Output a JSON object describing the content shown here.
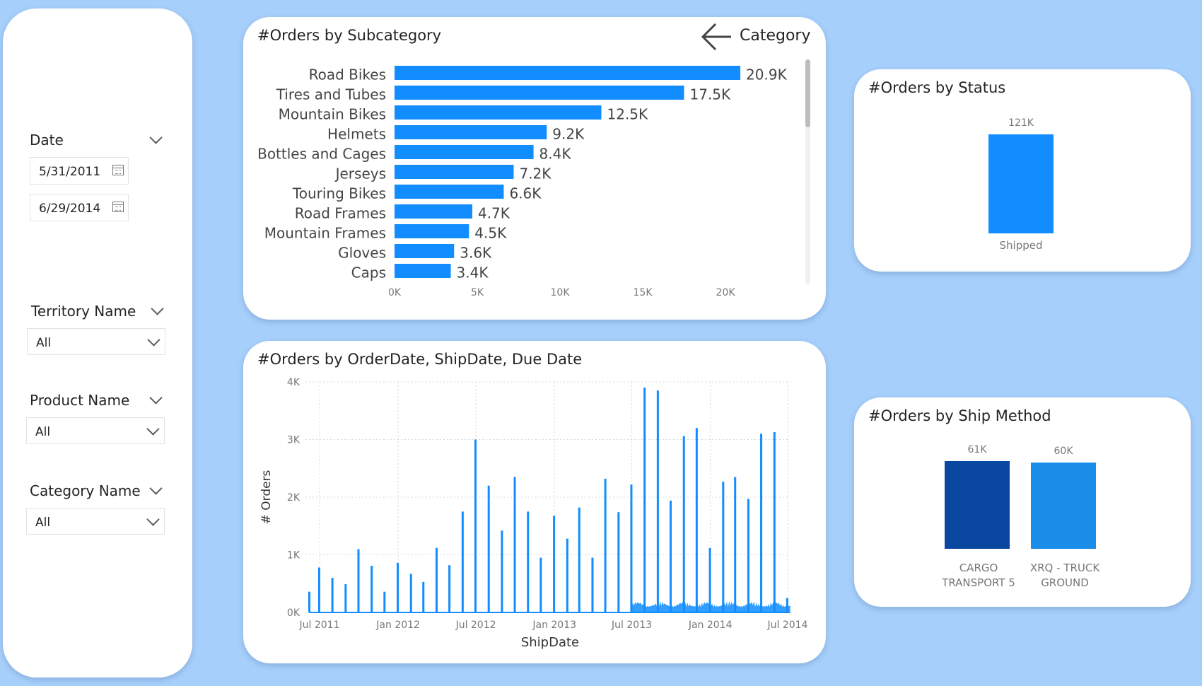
{
  "filters": {
    "date": {
      "label": "Date",
      "start": "5/31/2011",
      "end": "6/29/2014"
    },
    "territory": {
      "label": "Territory Name",
      "value": "All"
    },
    "product": {
      "label": "Product Name",
      "value": "All"
    },
    "category": {
      "label": "Category Name",
      "value": "All"
    }
  },
  "drill": {
    "label": "Category"
  },
  "colors": {
    "bar": "#118dff",
    "cargo": "#0a47a0",
    "xrq": "#1a8de8",
    "background": "#a7cffb"
  },
  "chart_data": [
    {
      "id": "subcategory",
      "type": "bar",
      "orientation": "horizontal",
      "title": "#Orders by Subcategory",
      "categories": [
        "Road Bikes",
        "Tires and Tubes",
        "Mountain Bikes",
        "Helmets",
        "Bottles and Cages",
        "Jerseys",
        "Touring Bikes",
        "Road Frames",
        "Mountain Frames",
        "Gloves",
        "Caps"
      ],
      "values": [
        20900,
        17500,
        12500,
        9200,
        8400,
        7200,
        6600,
        4700,
        4500,
        3600,
        3400
      ],
      "data_labels": [
        "20.9K",
        "17.5K",
        "12.5K",
        "9.2K",
        "8.4K",
        "7.2K",
        "6.6K",
        "4.7K",
        "4.5K",
        "3.6K",
        "3.4K"
      ],
      "x_ticks": [
        0,
        5000,
        10000,
        15000,
        20000
      ],
      "x_tick_labels": [
        "0K",
        "5K",
        "10K",
        "15K",
        "20K"
      ],
      "xlim": [
        0,
        23000
      ],
      "grid": false
    },
    {
      "id": "dates",
      "type": "bar",
      "title": "#Orders by OrderDate, ShipDate, Due Date",
      "xlabel": "ShipDate",
      "ylabel": "# Orders",
      "ylim": [
        0,
        4000
      ],
      "y_ticks": [
        0,
        1000,
        2000,
        3000,
        4000
      ],
      "y_tick_labels": [
        "0K",
        "1K",
        "2K",
        "3K",
        "4K"
      ],
      "x_tick_dates": [
        "2011-07-01",
        "2012-01-01",
        "2012-07-01",
        "2013-01-01",
        "2013-07-01",
        "2014-01-01",
        "2014-07-01"
      ],
      "x_tick_labels": [
        "Jul 2011",
        "Jan 2012",
        "Jul 2012",
        "Jan 2013",
        "Jul 2013",
        "Jan 2014",
        "Jul 2014"
      ],
      "xlim": [
        "2011-06-07",
        "2014-07-07"
      ],
      "grid": true,
      "x": [
        "2011-06-07",
        "2011-06-30",
        "2011-07-31",
        "2011-08-31",
        "2011-09-30",
        "2011-10-31",
        "2011-11-30",
        "2011-12-31",
        "2012-01-31",
        "2012-02-29",
        "2012-03-31",
        "2012-04-30",
        "2012-05-31",
        "2012-06-30",
        "2012-07-31",
        "2012-08-31",
        "2012-09-30",
        "2012-10-31",
        "2012-11-30",
        "2012-12-31",
        "2013-01-31",
        "2013-02-28",
        "2013-03-31",
        "2013-04-30",
        "2013-05-31",
        "2013-06-30",
        "2013-07-31",
        "2013-08-31",
        "2013-09-30",
        "2013-10-31",
        "2013-11-30",
        "2013-12-31",
        "2014-01-31",
        "2014-02-28",
        "2014-03-31",
        "2014-04-30",
        "2014-05-31",
        "2014-06-30"
      ],
      "values": [
        360,
        780,
        600,
        490,
        1100,
        810,
        360,
        860,
        670,
        530,
        1120,
        820,
        1750,
        3000,
        2200,
        1420,
        2350,
        1750,
        950,
        1680,
        1280,
        1820,
        950,
        2320,
        1740,
        2220,
        3900,
        3850,
        1940,
        3060,
        3200,
        1120,
        2270,
        2350,
        1970,
        3100,
        3130,
        250
      ],
      "daily_activity_start": "2013-07-01",
      "daily_activity_level": [
        0,
        200
      ]
    },
    {
      "id": "status",
      "type": "bar",
      "title": "#Orders by Status",
      "categories": [
        "Shipped"
      ],
      "values": [
        121000
      ],
      "data_labels": [
        "121K"
      ],
      "ylim": [
        0,
        121000
      ]
    },
    {
      "id": "shipmethod",
      "type": "bar",
      "title": "#Orders by Ship Method",
      "categories": [
        [
          "CARGO",
          "TRANSPORT 5"
        ],
        [
          "XRQ - TRUCK",
          "GROUND"
        ]
      ],
      "values": [
        61000,
        60000
      ],
      "data_labels": [
        "61K",
        "60K"
      ],
      "ylim": [
        0,
        61000
      ]
    }
  ]
}
